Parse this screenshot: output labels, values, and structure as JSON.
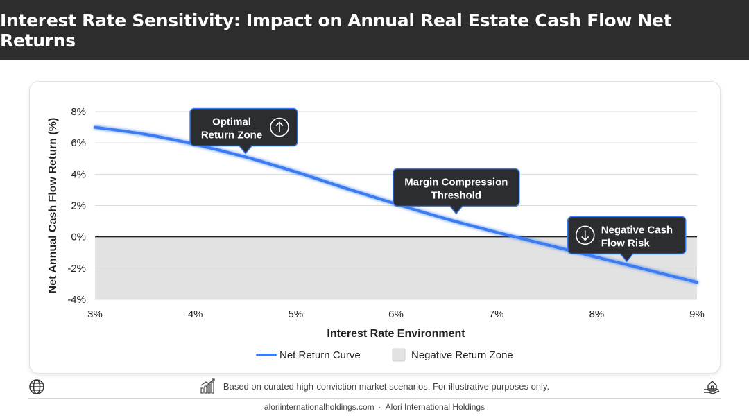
{
  "header": {
    "title": "Interest Rate Sensitivity: Impact on Annual Real Estate Cash Flow Net Returns"
  },
  "chart_data": {
    "type": "line",
    "title": "Interest Rate Sensitivity: Impact on Annual Real Estate Cash Flow Net Returns",
    "xlabel": "Interest Rate Environment",
    "ylabel": "Net Annual Cash Flow Return (%)",
    "xlim": [
      3,
      9
    ],
    "ylim": [
      -4,
      8
    ],
    "x_ticks": [
      "3%",
      "4%",
      "5%",
      "6%",
      "7%",
      "8%",
      "9%"
    ],
    "y_ticks": [
      "8%",
      "6%",
      "4%",
      "2%",
      "0%",
      "-2%",
      "-4%"
    ],
    "x_tick_values": [
      3,
      4,
      5,
      6,
      7,
      8,
      9
    ],
    "y_tick_values": [
      8,
      6,
      4,
      2,
      0,
      -2,
      -4
    ],
    "grid": true,
    "series": [
      {
        "name": "Net Return Curve",
        "color": "#3b7bf0",
        "x": [
          3.0,
          3.5,
          4.0,
          4.5,
          5.0,
          5.5,
          6.0,
          6.5,
          7.0,
          7.5,
          8.0,
          8.5,
          9.0
        ],
        "values": [
          7.0,
          6.55,
          5.9,
          5.1,
          4.15,
          3.1,
          2.1,
          1.15,
          0.3,
          -0.5,
          -1.3,
          -2.1,
          -2.9
        ]
      }
    ],
    "shaded_regions": [
      {
        "name": "Negative Return Zone",
        "y_from": -4,
        "y_to": 0,
        "color": "#e2e2e2"
      }
    ],
    "annotations": [
      {
        "lines": [
          "Optimal",
          "Return Zone"
        ],
        "x": 4.5,
        "y": 5.1,
        "icon": "arrow-up-circle-icon"
      },
      {
        "lines": [
          "Margin Compression",
          "Threshold"
        ],
        "x": 6.6,
        "y": 1.25,
        "icon": ""
      },
      {
        "lines": [
          "Negative Cash",
          "Flow Risk"
        ],
        "x": 8.3,
        "y": -1.8,
        "icon": "arrow-down-circle-icon"
      }
    ],
    "legend": {
      "placement": "bottom",
      "items": [
        {
          "label": "Net Return Curve",
          "type": "line",
          "color": "#3b7bf0"
        },
        {
          "label": "Negative Return Zone",
          "type": "box",
          "color": "#e2e2e2"
        }
      ]
    }
  },
  "footer": {
    "note": "Based on curated high-conviction market scenarios. For illustrative purposes only.",
    "site": "aloriinternationalholdings.com",
    "separator": "·",
    "company": "Alori International Holdings",
    "icons": [
      "globe-icon",
      "growth-chart-icon",
      "house-in-hand-icon"
    ]
  }
}
